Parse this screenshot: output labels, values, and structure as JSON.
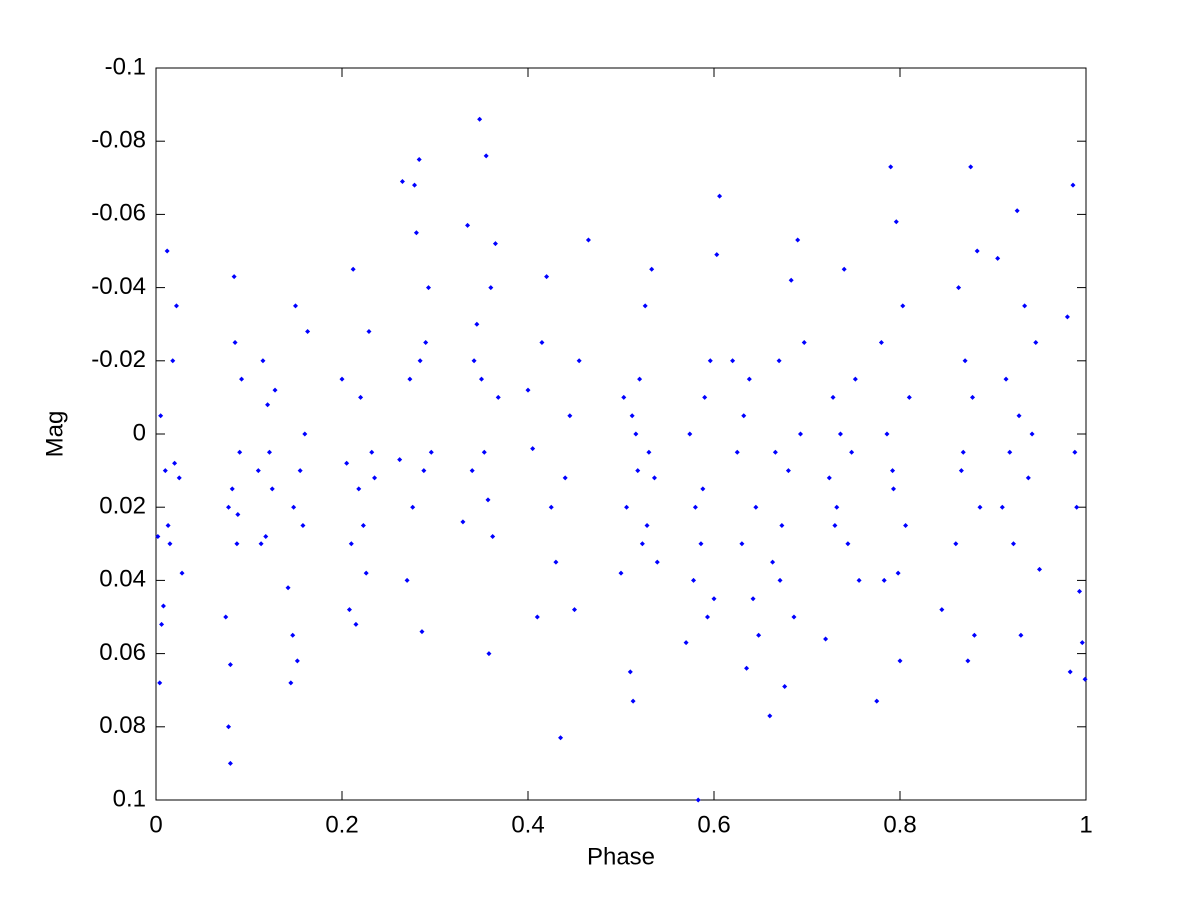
{
  "chart_data": {
    "type": "scatter",
    "xlabel": "Phase",
    "ylabel": "Mag",
    "color": "#0000ff",
    "xlim": [
      0,
      1
    ],
    "xticks": [
      0,
      0.2,
      0.4,
      0.6,
      0.8,
      1
    ],
    "ylim": [
      0.1,
      -0.1
    ],
    "yticks": [
      -0.1,
      -0.08,
      -0.06,
      -0.04,
      -0.02,
      0,
      0.02,
      0.04,
      0.06,
      0.08,
      0.1
    ],
    "grid": false,
    "x": [
      0.002,
      0.005,
      0.008,
      0.01,
      0.012,
      0.015,
      0.018,
      0.02,
      0.022,
      0.025,
      0.028,
      0.004,
      0.013,
      0.006,
      0.075,
      0.078,
      0.08,
      0.082,
      0.085,
      0.087,
      0.09,
      0.092,
      0.08,
      0.078,
      0.088,
      0.084,
      0.11,
      0.115,
      0.118,
      0.122,
      0.125,
      0.128,
      0.113,
      0.12,
      0.142,
      0.145,
      0.148,
      0.15,
      0.152,
      0.155,
      0.158,
      0.16,
      0.163,
      0.147,
      0.2,
      0.205,
      0.21,
      0.212,
      0.215,
      0.218,
      0.22,
      0.223,
      0.226,
      0.229,
      0.232,
      0.235,
      0.208,
      0.262,
      0.265,
      0.27,
      0.273,
      0.276,
      0.28,
      0.283,
      0.286,
      0.288,
      0.29,
      0.293,
      0.296,
      0.284,
      0.278,
      0.33,
      0.335,
      0.34,
      0.345,
      0.348,
      0.35,
      0.353,
      0.355,
      0.358,
      0.36,
      0.362,
      0.365,
      0.368,
      0.357,
      0.342,
      0.4,
      0.405,
      0.41,
      0.415,
      0.42,
      0.425,
      0.43,
      0.435,
      0.44,
      0.445,
      0.45,
      0.455,
      0.465,
      0.5,
      0.503,
      0.506,
      0.51,
      0.513,
      0.516,
      0.52,
      0.523,
      0.526,
      0.53,
      0.533,
      0.536,
      0.539,
      0.512,
      0.518,
      0.528,
      0.57,
      0.574,
      0.578,
      0.58,
      0.583,
      0.586,
      0.59,
      0.593,
      0.596,
      0.6,
      0.603,
      0.606,
      0.588,
      0.62,
      0.625,
      0.63,
      0.635,
      0.638,
      0.642,
      0.645,
      0.648,
      0.632,
      0.66,
      0.663,
      0.666,
      0.67,
      0.673,
      0.676,
      0.68,
      0.683,
      0.686,
      0.69,
      0.693,
      0.697,
      0.671,
      0.72,
      0.724,
      0.728,
      0.732,
      0.736,
      0.74,
      0.744,
      0.748,
      0.752,
      0.756,
      0.73,
      0.775,
      0.78,
      0.783,
      0.786,
      0.79,
      0.793,
      0.796,
      0.8,
      0.803,
      0.806,
      0.81,
      0.798,
      0.792,
      0.845,
      0.86,
      0.863,
      0.866,
      0.87,
      0.873,
      0.876,
      0.88,
      0.883,
      0.886,
      0.868,
      0.878,
      0.905,
      0.91,
      0.914,
      0.918,
      0.922,
      0.926,
      0.93,
      0.934,
      0.938,
      0.942,
      0.946,
      0.95,
      0.928,
      0.98,
      0.983,
      0.986,
      0.99,
      0.993,
      0.996,
      0.999,
      0.988
    ],
    "y": [
      0.028,
      -0.005,
      0.047,
      0.01,
      -0.05,
      0.03,
      -0.02,
      0.008,
      -0.035,
      0.012,
      0.038,
      0.068,
      0.025,
      0.052,
      0.05,
      0.02,
      0.09,
      0.015,
      -0.025,
      0.03,
      0.005,
      -0.015,
      0.063,
      0.08,
      0.022,
      -0.043,
      0.01,
      -0.02,
      0.028,
      0.005,
      0.015,
      -0.012,
      0.03,
      -0.008,
      0.042,
      0.068,
      0.02,
      -0.035,
      0.062,
      0.01,
      0.025,
      0.0,
      -0.028,
      0.055,
      -0.015,
      0.008,
      0.03,
      -0.045,
      0.052,
      0.015,
      -0.01,
      0.025,
      0.038,
      -0.028,
      0.005,
      0.012,
      0.048,
      0.007,
      -0.069,
      0.04,
      -0.015,
      0.02,
      -0.055,
      -0.075,
      0.054,
      0.01,
      -0.025,
      -0.04,
      0.005,
      -0.02,
      -0.068,
      0.024,
      -0.057,
      0.01,
      -0.03,
      -0.086,
      -0.015,
      0.005,
      -0.076,
      0.06,
      -0.04,
      0.028,
      -0.052,
      -0.01,
      0.018,
      -0.02,
      -0.012,
      0.004,
      0.05,
      -0.025,
      -0.043,
      0.02,
      0.035,
      0.083,
      0.012,
      -0.005,
      0.048,
      -0.02,
      -0.053,
      0.038,
      -0.01,
      0.02,
      0.065,
      0.073,
      0.0,
      -0.015,
      0.03,
      -0.035,
      0.005,
      -0.045,
      0.012,
      0.035,
      -0.005,
      0.01,
      0.025,
      0.057,
      0.0,
      0.04,
      0.02,
      0.1,
      0.03,
      -0.01,
      0.05,
      -0.02,
      0.045,
      -0.049,
      -0.065,
      0.015,
      -0.02,
      0.005,
      0.03,
      0.064,
      -0.015,
      0.045,
      0.02,
      0.055,
      -0.005,
      0.077,
      0.035,
      0.005,
      -0.02,
      0.025,
      0.069,
      0.01,
      -0.042,
      0.05,
      -0.053,
      0.0,
      -0.025,
      0.04,
      0.056,
      0.012,
      -0.01,
      0.02,
      0.0,
      -0.045,
      0.03,
      0.005,
      -0.015,
      0.04,
      0.025,
      0.073,
      -0.025,
      0.04,
      0.0,
      -0.073,
      0.015,
      -0.058,
      0.062,
      -0.035,
      0.025,
      -0.01,
      0.038,
      0.01,
      0.048,
      0.03,
      -0.04,
      0.01,
      -0.02,
      0.062,
      -0.073,
      0.055,
      -0.05,
      0.02,
      0.005,
      -0.01,
      -0.048,
      0.02,
      -0.015,
      0.005,
      0.03,
      -0.061,
      0.055,
      -0.035,
      0.012,
      0.0,
      -0.025,
      0.037,
      -0.005,
      -0.032,
      0.065,
      -0.068,
      0.02,
      0.043,
      0.057,
      0.067,
      0.005
    ]
  }
}
